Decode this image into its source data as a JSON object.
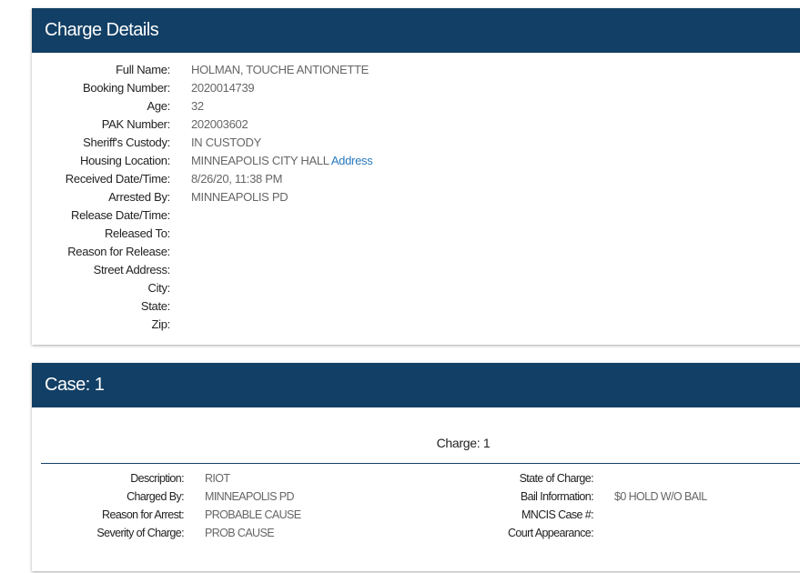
{
  "charge_details": {
    "title": "Charge Details",
    "fields": [
      {
        "label": "Full Name:",
        "value": "HOLMAN, TOUCHE ANTIONETTE"
      },
      {
        "label": "Booking Number:",
        "value": "2020014739"
      },
      {
        "label": "Age:",
        "value": "32"
      },
      {
        "label": "PAK Number:",
        "value": "202003602"
      },
      {
        "label": "Sheriff's Custody:",
        "value": "IN CUSTODY"
      },
      {
        "label": "Housing Location:",
        "value": "MINNEAPOLIS CITY HALL",
        "link": "Address"
      },
      {
        "label": "Received Date/Time:",
        "value": "8/26/20, 11:38 PM"
      },
      {
        "label": "Arrested By:",
        "value": "MINNEAPOLIS PD"
      },
      {
        "label": "Release Date/Time:",
        "value": ""
      },
      {
        "label": "Released To:",
        "value": ""
      },
      {
        "label": "Reason for Release:",
        "value": ""
      },
      {
        "label": "Street Address:",
        "value": ""
      },
      {
        "label": "City:",
        "value": ""
      },
      {
        "label": "State:",
        "value": ""
      },
      {
        "label": "Zip:",
        "value": ""
      }
    ]
  },
  "case": {
    "title": "Case: 1",
    "charge_title": "Charge: 1",
    "left": [
      {
        "label": "Description:",
        "value": "RIOT"
      },
      {
        "label": "Charged By:",
        "value": "MINNEAPOLIS PD"
      },
      {
        "label": "Reason for Arrest:",
        "value": "PROBABLE CAUSE"
      },
      {
        "label": "Severity of Charge:",
        "value": "PROB CAUSE"
      }
    ],
    "right": [
      {
        "label": "State of Charge:",
        "value": ""
      },
      {
        "label": "Bail Information:",
        "value": "$0 HOLD W/O BAIL"
      },
      {
        "label": "MNCIS Case #:",
        "value": ""
      },
      {
        "label": "Court Appearance:",
        "value": ""
      }
    ]
  },
  "colors": {
    "header": "#123f65",
    "link": "#2a7ac0"
  }
}
